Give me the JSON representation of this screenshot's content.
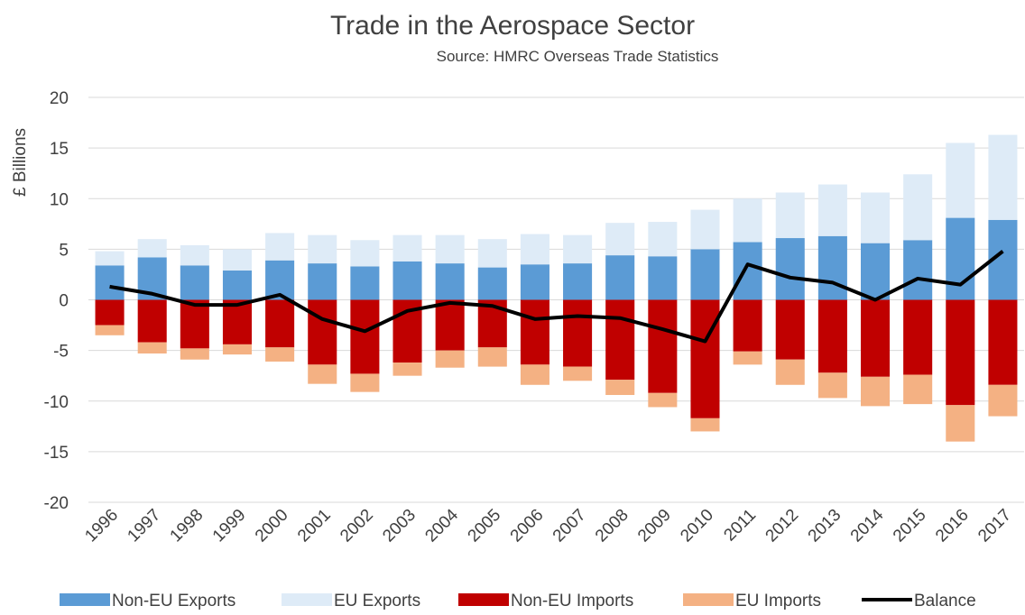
{
  "chart_data": {
    "type": "bar",
    "title": "Trade in the Aerospace Sector",
    "subtitle": "Source: HMRC Overseas Trade Statistics",
    "y_label": "£ Billions",
    "categories": [
      "1996",
      "1997",
      "1998",
      "1999",
      "2000",
      "2001",
      "2002",
      "2003",
      "2004",
      "2005",
      "2006",
      "2007",
      "2008",
      "2009",
      "2010",
      "2011",
      "2012",
      "2013",
      "2014",
      "2015",
      "2016",
      "2017"
    ],
    "ylim": [
      -20,
      20
    ],
    "yticks": [
      -20,
      -15,
      -10,
      -5,
      0,
      5,
      10,
      15,
      20
    ],
    "grid": true,
    "stacked": true,
    "legend": "bottom",
    "series": [
      {
        "name": "Non-EU Exports",
        "color": "#5b9bd5",
        "type": "bar",
        "values": [
          3.4,
          4.2,
          3.4,
          2.9,
          3.9,
          3.6,
          3.3,
          3.8,
          3.6,
          3.2,
          3.5,
          3.6,
          4.4,
          4.3,
          5.0,
          5.7,
          6.1,
          6.3,
          5.6,
          5.9,
          8.1,
          7.9
        ]
      },
      {
        "name": "EU Exports",
        "color": "#deebf7",
        "type": "bar",
        "values": [
          1.4,
          1.8,
          2.0,
          2.1,
          2.7,
          2.8,
          2.6,
          2.6,
          2.8,
          2.8,
          3.0,
          2.8,
          3.2,
          3.4,
          3.9,
          4.3,
          4.5,
          5.1,
          5.0,
          6.5,
          7.4,
          8.4
        ]
      },
      {
        "name": "Non-EU Imports",
        "color": "#c00000",
        "type": "bar",
        "values": [
          -2.5,
          -4.2,
          -4.8,
          -4.4,
          -4.7,
          -6.4,
          -7.3,
          -6.2,
          -5.0,
          -4.7,
          -6.4,
          -6.6,
          -7.9,
          -9.2,
          -11.7,
          -5.1,
          -5.9,
          -7.2,
          -7.6,
          -7.4,
          -10.4,
          -8.4
        ]
      },
      {
        "name": "EU Imports",
        "color": "#f4b183",
        "type": "bar",
        "values": [
          -1.0,
          -1.1,
          -1.1,
          -1.0,
          -1.4,
          -1.9,
          -1.8,
          -1.3,
          -1.7,
          -1.9,
          -2.0,
          -1.4,
          -1.5,
          -1.4,
          -1.3,
          -1.3,
          -2.5,
          -2.5,
          -2.9,
          -2.9,
          -3.6,
          -3.1
        ]
      },
      {
        "name": "Balance",
        "color": "#000000",
        "type": "line",
        "values": [
          1.3,
          0.6,
          -0.5,
          -0.5,
          0.5,
          -1.9,
          -3.1,
          -1.1,
          -0.3,
          -0.6,
          -1.9,
          -1.6,
          -1.8,
          -2.9,
          -4.1,
          3.5,
          2.2,
          1.7,
          0.0,
          2.1,
          1.5,
          4.8
        ]
      }
    ]
  }
}
